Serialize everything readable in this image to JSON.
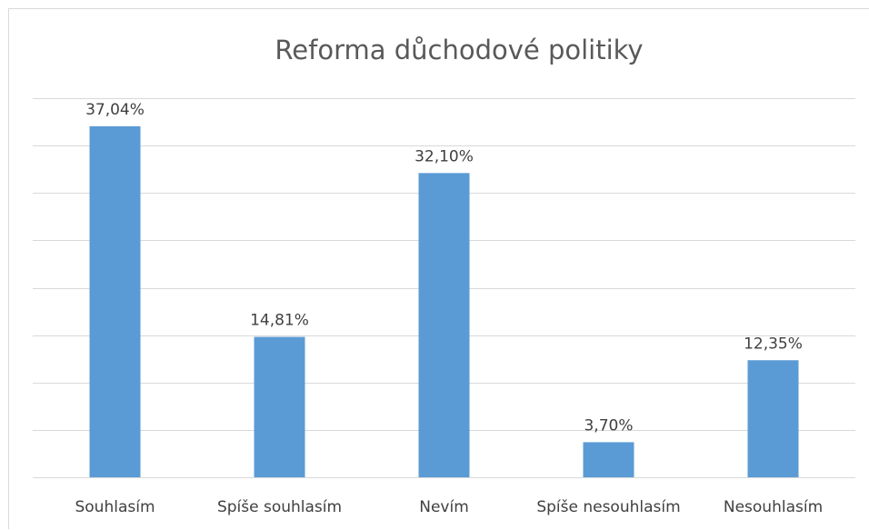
{
  "chart_data": {
    "type": "bar",
    "title": "Reforma důchodové politiky",
    "xlabel": "",
    "ylabel": "",
    "categories": [
      "Souhlasím",
      "Spíše souhlasím",
      "Nevím",
      "Spíše nesouhlasím",
      "Nesouhlasím"
    ],
    "values": [
      37.04,
      14.81,
      32.1,
      3.7,
      12.35
    ],
    "data_labels": [
      "37,04%",
      "14,81%",
      "32,10%",
      "3,70%",
      "12,35%"
    ],
    "ylim": [
      0,
      40
    ],
    "y_axis_visible": false,
    "grid": true,
    "legend": "none",
    "bar_color": "#5b9bd5"
  }
}
